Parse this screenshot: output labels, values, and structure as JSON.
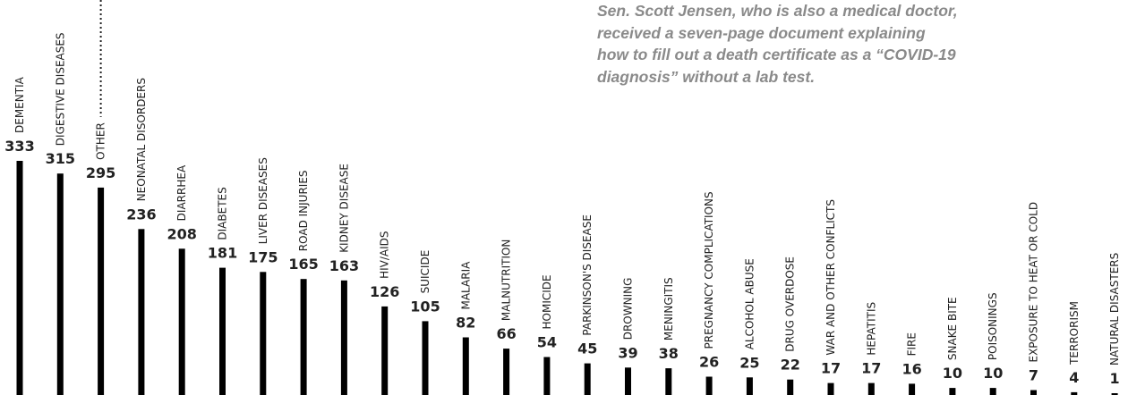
{
  "annotation": {
    "lines": [
      "Sen. Scott Jensen, who is also a medical doctor,",
      "received a seven-page document explaining",
      "how to fill out a death certificate as a “COVID-19",
      "diagnosis” without a lab test."
    ]
  },
  "colors": {
    "bar": "#000000",
    "text": "#222222",
    "annotation": "#8a8a8a"
  },
  "chart_data": {
    "type": "bar",
    "title": "",
    "xlabel": "",
    "ylabel": "",
    "ylim": [
      0,
      333
    ],
    "grid": false,
    "categories": [
      "DEMENTIA",
      "DIGESTIVE DISEASES",
      "OTHER",
      "NEONATAL DISORDERS",
      "DIARRHEA",
      "DIABETES",
      "LIVER DISEASES",
      "ROAD INJURIES",
      "KIDNEY DISEASE",
      "HIV/AIDS",
      "SUICIDE",
      "MALARIA",
      "MALNUTRITION",
      "HOMICIDE",
      "PARKINSON'S DISEASE",
      "DROWNING",
      "MENINGITIS",
      "PREGNANCY COMPLICATIONS",
      "ALCOHOL ABUSE",
      "DRUG OVERDOSE",
      "WAR AND OTHER CONFLICTS",
      "HEPATITIS",
      "FIRE",
      "SNAKE BITE",
      "POISONINGS",
      "EXPOSURE TO HEAT OR COLD",
      "TERRORISM",
      "NATURAL DISASTERS"
    ],
    "values": [
      333,
      315,
      295,
      236,
      208,
      181,
      175,
      165,
      163,
      126,
      105,
      82,
      66,
      54,
      45,
      39,
      38,
      26,
      25,
      22,
      17,
      17,
      16,
      10,
      10,
      7,
      4,
      1
    ]
  }
}
